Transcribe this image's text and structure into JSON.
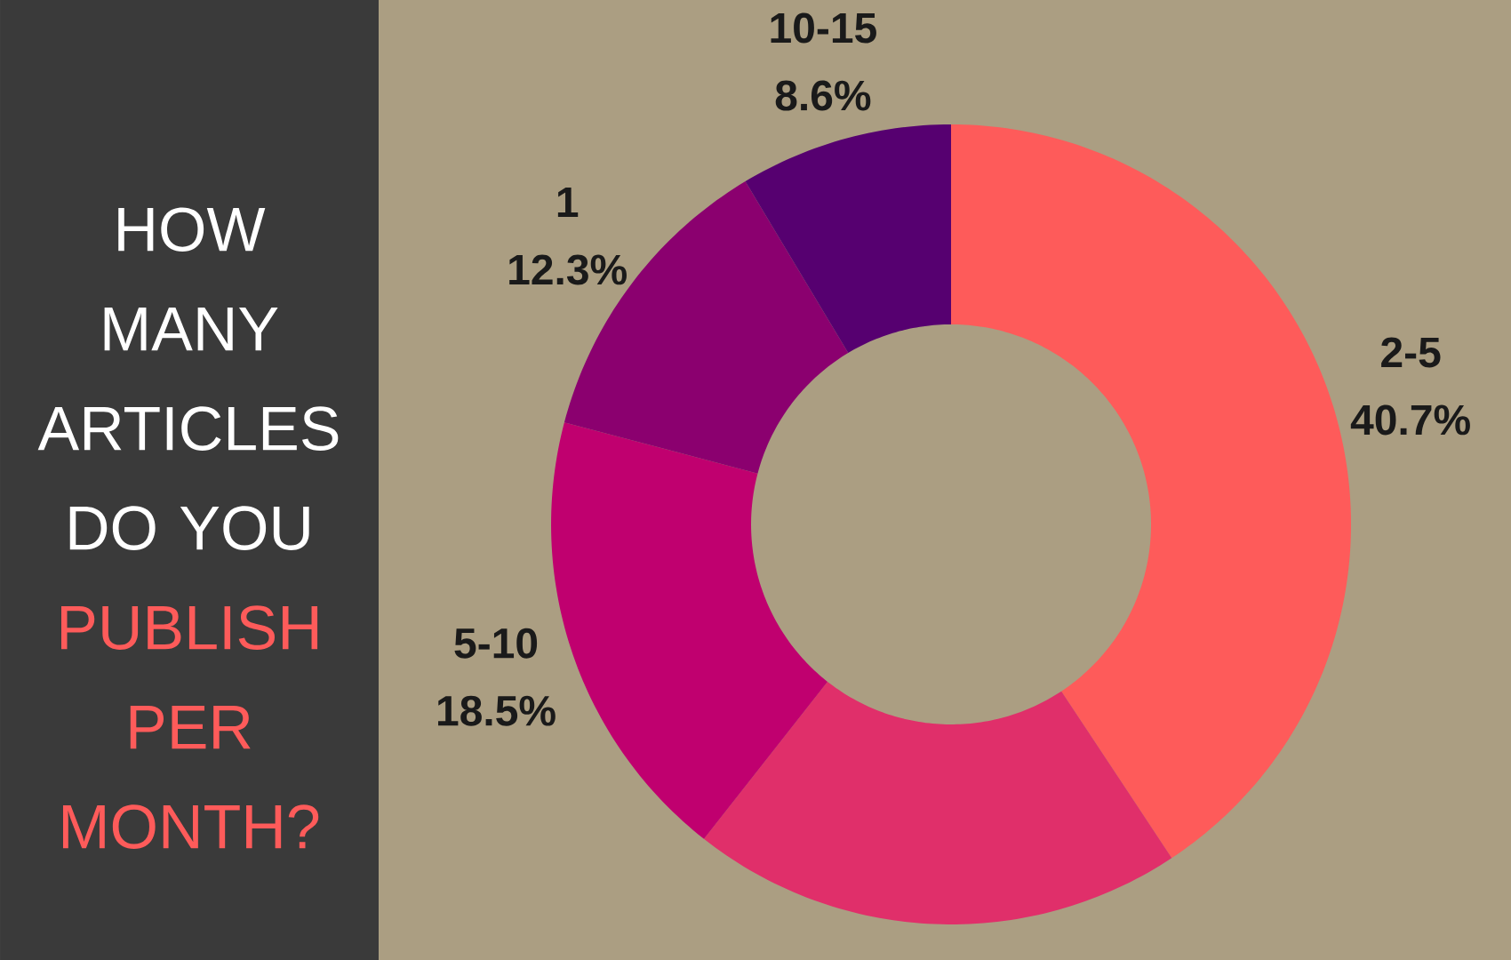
{
  "chart_data": {
    "type": "donut",
    "title": "HOW MANY ARTICLES DO YOU",
    "subtitle": "PUBLISH PER MONTH?",
    "categories": [
      "2-5",
      null,
      "5-10",
      "1",
      "10-15"
    ],
    "values": [
      40.7,
      19.9,
      18.5,
      12.3,
      8.6
    ],
    "colors": [
      "#fe5b5a",
      "#e02f6a",
      "#c0006f",
      "#8b006f",
      "#560070"
    ],
    "value_labels": [
      "40.7%",
      null,
      "18.5%",
      "12.3%",
      "8.6%"
    ]
  }
}
